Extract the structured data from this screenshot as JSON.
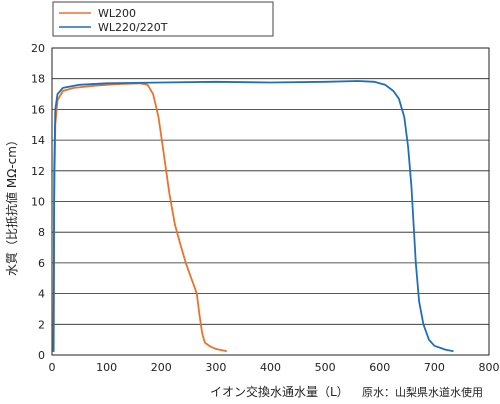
{
  "chart_data": {
    "type": "line",
    "xlabel": "イオン交換水通水量（L）",
    "ylabel": "水質（比抵抗値 MΩ-cm）",
    "note": "原水：山梨県水道水使用",
    "xlim": [
      0,
      800
    ],
    "ylim": [
      0,
      20
    ],
    "x_ticks": [
      0,
      100,
      200,
      300,
      400,
      500,
      600,
      700,
      800
    ],
    "y_ticks": [
      0,
      2,
      4,
      6,
      8,
      10,
      12,
      14,
      16,
      18,
      20
    ],
    "grid": "horizontal",
    "legend_position": "top-left",
    "series": [
      {
        "name": "WL200",
        "color": "#e8732a",
        "x": [
          3,
          4,
          6,
          10,
          20,
          40,
          80,
          120,
          160,
          175,
          185,
          195,
          205,
          215,
          225,
          235,
          245,
          255,
          265,
          270,
          275,
          280,
          290,
          300,
          320
        ],
        "y": [
          0.2,
          10,
          15,
          16.6,
          17.2,
          17.4,
          17.55,
          17.65,
          17.7,
          17.6,
          17.0,
          15.5,
          13.0,
          10.5,
          8.5,
          7.2,
          6.0,
          5.0,
          4.0,
          2.6,
          1.4,
          0.8,
          0.55,
          0.4,
          0.25
        ]
      },
      {
        "name": "WL220/220T",
        "color": "#1f6fb8",
        "x": [
          3,
          4,
          6,
          10,
          20,
          50,
          100,
          200,
          300,
          400,
          500,
          560,
          590,
          610,
          625,
          635,
          645,
          652,
          658,
          662,
          666,
          672,
          680,
          690,
          700,
          720,
          735
        ],
        "y": [
          0.2,
          12,
          16,
          17.0,
          17.4,
          17.6,
          17.7,
          17.75,
          17.8,
          17.75,
          17.8,
          17.85,
          17.8,
          17.6,
          17.2,
          16.7,
          15.5,
          13.5,
          11.0,
          8.5,
          6.0,
          3.5,
          2.0,
          1.0,
          0.6,
          0.35,
          0.25
        ]
      }
    ]
  }
}
